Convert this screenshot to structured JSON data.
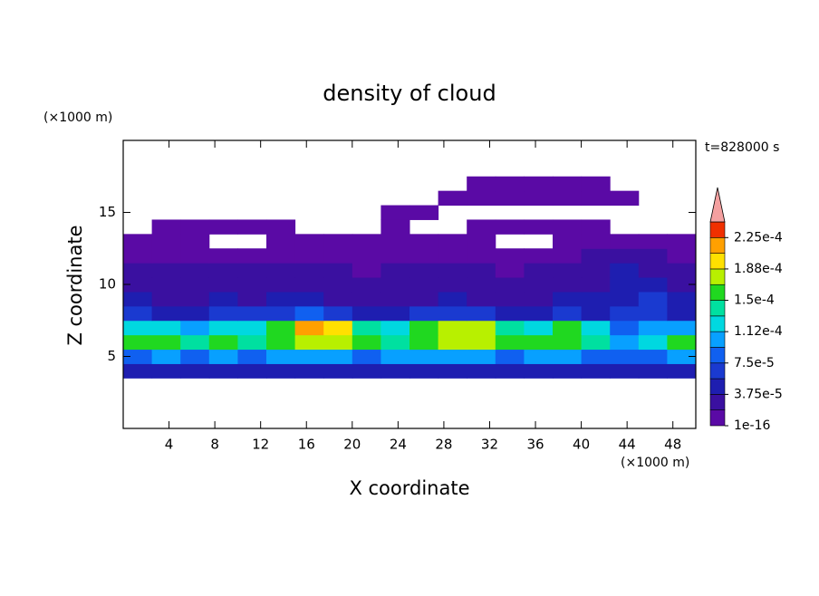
{
  "chart_data": {
    "type": "contour",
    "title": "density of cloud",
    "time_label": "t=828000 s",
    "xlabel": "X coordinate",
    "ylabel": "Z coordinate",
    "xunit": "(×1000 m)",
    "yunit": "(×1000 m)",
    "xlim": [
      0,
      50
    ],
    "ylim": [
      0,
      20
    ],
    "xticks": [
      4,
      8,
      12,
      16,
      20,
      24,
      28,
      32,
      36,
      40,
      44,
      48
    ],
    "yticks": [
      5,
      10,
      15
    ],
    "x": [
      0,
      2.5,
      5,
      7.5,
      10,
      12.5,
      15,
      17.5,
      20,
      22.5,
      25,
      27.5,
      30,
      32.5,
      35,
      37.5,
      40,
      42.5,
      45,
      47.5,
      50
    ],
    "y": [
      3.5,
      4.5,
      5.5,
      6.5,
      7.5,
      8.5,
      9.5,
      10.5,
      11.5,
      12.5,
      13.5,
      14.5,
      15.5,
      16.5,
      17.5
    ],
    "z": [
      [
        4e-05,
        4e-05,
        4e-05,
        4e-05,
        4e-05,
        4e-05,
        4e-05,
        4e-05,
        4e-05,
        4e-05,
        4e-05,
        4e-05,
        4e-05,
        4e-05,
        4e-05,
        4e-05,
        4e-05,
        4e-05,
        4e-05,
        4e-05
      ],
      [
        9e-05,
        0.0001,
        9e-05,
        0.0001,
        9e-05,
        0.0001,
        0.00011,
        0.0001,
        9e-05,
        0.0001,
        0.0001,
        0.00011,
        0.0001,
        9e-05,
        0.0001,
        0.0001,
        9e-05,
        8e-05,
        9e-05,
        0.0001
      ],
      [
        0.00015,
        0.000155,
        0.000145,
        0.00015,
        0.00014,
        0.000165,
        0.000175,
        0.00017,
        0.00015,
        0.00014,
        0.00016,
        0.000175,
        0.00017,
        0.00016,
        0.00015,
        0.00016,
        0.000145,
        0.00011,
        0.00013,
        0.00015
      ],
      [
        0.00013,
        0.00012,
        0.00011,
        0.00012,
        0.00013,
        0.00016,
        0.00021,
        0.00019,
        0.00014,
        0.00012,
        0.00015,
        0.00018,
        0.00017,
        0.00014,
        0.00013,
        0.00015,
        0.00012,
        8e-05,
        0.0001,
        0.00011
      ],
      [
        6e-05,
        5e-05,
        5e-05,
        6e-05,
        6e-05,
        7e-05,
        8e-05,
        7e-05,
        5e-05,
        5e-05,
        6e-05,
        7e-05,
        6e-05,
        5e-05,
        5e-05,
        6e-05,
        5e-05,
        6e-05,
        7e-05,
        5e-05
      ],
      [
        4e-05,
        3.5e-05,
        3e-05,
        4e-05,
        3.5e-05,
        4e-05,
        4e-05,
        3.5e-05,
        3e-05,
        3.5e-05,
        3e-05,
        4e-05,
        3.5e-05,
        3e-05,
        3.5e-05,
        4e-05,
        4e-05,
        5e-05,
        6e-05,
        4e-05
      ],
      [
        3e-05,
        2.5e-05,
        2.5e-05,
        3e-05,
        2.5e-05,
        3e-05,
        2.5e-05,
        2.5e-05,
        2e-05,
        2.5e-05,
        2.5e-05,
        3e-05,
        2.5e-05,
        2e-05,
        2.5e-05,
        3e-05,
        3.5e-05,
        5e-05,
        5e-05,
        3e-05
      ],
      [
        2.5e-05,
        2e-05,
        2e-05,
        2.5e-05,
        2e-05,
        2e-05,
        2e-05,
        2e-05,
        1.5e-05,
        2e-05,
        2e-05,
        2e-05,
        2e-05,
        1.5e-05,
        2e-05,
        2e-05,
        3e-05,
        4e-05,
        3.5e-05,
        2e-05
      ],
      [
        1.5e-05,
        1.5e-05,
        1e-05,
        1e-05,
        1e-05,
        1.5e-05,
        1e-05,
        1e-05,
        1e-05,
        1e-05,
        1e-05,
        1e-05,
        1e-05,
        1e-05,
        1e-05,
        1.5e-05,
        2e-05,
        2.5e-05,
        2e-05,
        1.5e-05
      ],
      [
        1e-05,
        1e-05,
        1e-05,
        null,
        null,
        1e-05,
        1e-05,
        1e-05,
        1e-05,
        1e-05,
        1e-05,
        1e-05,
        1e-05,
        null,
        null,
        1e-05,
        1e-05,
        1e-05,
        1e-05,
        1e-05
      ],
      [
        null,
        1e-05,
        1e-05,
        1e-05,
        1e-05,
        1e-05,
        null,
        null,
        null,
        1e-05,
        null,
        null,
        1e-05,
        1e-05,
        1e-05,
        1e-05,
        1e-05,
        null,
        null,
        null
      ],
      [
        null,
        null,
        null,
        null,
        null,
        null,
        null,
        null,
        null,
        1e-05,
        1e-05,
        null,
        null,
        null,
        null,
        null,
        null,
        null,
        null,
        null
      ],
      [
        null,
        null,
        null,
        null,
        null,
        null,
        null,
        null,
        null,
        null,
        null,
        1e-05,
        1e-05,
        1e-05,
        1e-05,
        1e-05,
        1e-05,
        1e-05,
        null,
        null
      ],
      [
        null,
        null,
        null,
        null,
        null,
        null,
        null,
        null,
        null,
        null,
        null,
        null,
        1e-05,
        1e-05,
        1e-05,
        1e-05,
        1e-05,
        null,
        null,
        null
      ]
    ],
    "levels": [
      1e-16,
      1.875e-05,
      3.75e-05,
      5.625e-05,
      7.5e-05,
      9.375e-05,
      0.0001125,
      0.00013125,
      0.00015,
      0.00016875,
      0.0001875,
      0.00020625,
      0.000225,
      0.00024375
    ],
    "colors": [
      "#5a0aa5",
      "#3a10a0",
      "#1e1eb0",
      "#1a3ad0",
      "#1060f0",
      "#08a0ff",
      "#00d8e0",
      "#00e0a0",
      "#20d820",
      "#b8f000",
      "#ffe000",
      "#ffa000",
      "#f03000"
    ],
    "extend_color": "#f4a0a0",
    "cbar_ticks": [
      {
        "value": 1e-16,
        "label": "1e-16"
      },
      {
        "value": 3.75e-05,
        "label": "3.75e-5"
      },
      {
        "value": 7.5e-05,
        "label": "7.5e-5"
      },
      {
        "value": 0.0001125,
        "label": "1.12e-4"
      },
      {
        "value": 0.00015,
        "label": "1.5e-4"
      },
      {
        "value": 0.0001875,
        "label": "1.88e-4"
      },
      {
        "value": 0.000225,
        "label": "2.25e-4"
      }
    ]
  }
}
